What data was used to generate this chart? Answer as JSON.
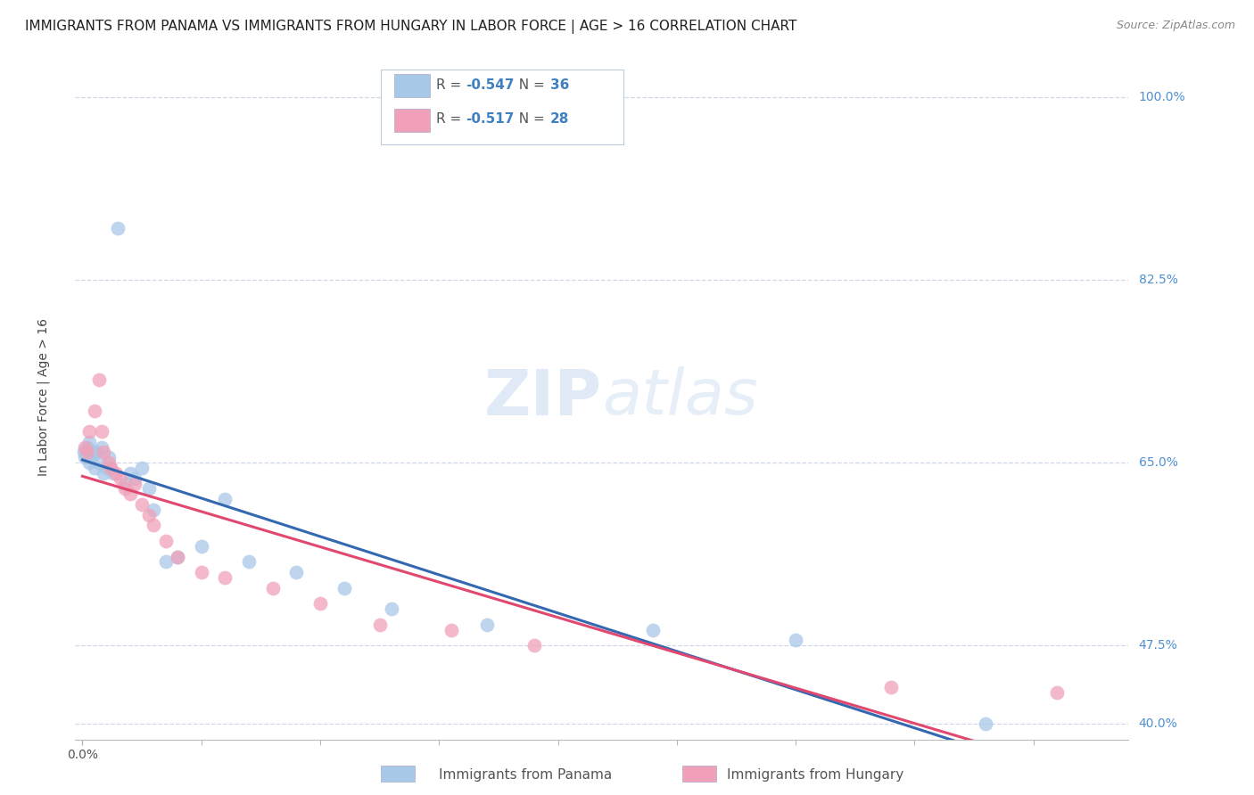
{
  "title": "IMMIGRANTS FROM PANAMA VS IMMIGRANTS FROM HUNGARY IN LABOR FORCE | AGE > 16 CORRELATION CHART",
  "source": "Source: ZipAtlas.com",
  "ylabel": "In Labor Force | Age > 16",
  "right_ytick_labels": [
    "100.0%",
    "82.5%",
    "65.0%",
    "47.5%",
    "40.0%"
  ],
  "right_ytick_values": [
    1.0,
    0.825,
    0.65,
    0.475,
    0.4
  ],
  "xmin": -0.003,
  "xmax": 0.44,
  "ymin": 0.385,
  "ymax": 1.04,
  "panama_color": "#a8c8e8",
  "hungary_color": "#f0a0b8",
  "panama_line_color": "#3468b0",
  "hungary_line_color": "#e04870",
  "grid_color": "#d0d8e8",
  "background_color": "#ffffff",
  "title_fontsize": 11,
  "label_fontsize": 10,
  "tick_fontsize": 10,
  "right_tick_color": "#5090d0",
  "legend_entries": [
    {
      "label": "R =  -0.547   N = 36",
      "color": "#a8c8e8"
    },
    {
      "label": "R =  -0.517   N = 28",
      "color": "#f0a0b8"
    }
  ],
  "panama_x": [
    0.0005,
    0.001,
    0.0015,
    0.002,
    0.003,
    0.003,
    0.004,
    0.005,
    0.005,
    0.006,
    0.007,
    0.008,
    0.009,
    0.01,
    0.011,
    0.012,
    0.013,
    0.015,
    0.018,
    0.02,
    0.022,
    0.025,
    0.028,
    0.03,
    0.035,
    0.04,
    0.05,
    0.06,
    0.07,
    0.09,
    0.11,
    0.13,
    0.17,
    0.24,
    0.3,
    0.38
  ],
  "panama_y": [
    0.66,
    0.655,
    0.66,
    0.665,
    0.67,
    0.65,
    0.655,
    0.66,
    0.645,
    0.66,
    0.65,
    0.665,
    0.64,
    0.645,
    0.655,
    0.645,
    0.64,
    0.875,
    0.63,
    0.64,
    0.635,
    0.645,
    0.625,
    0.605,
    0.555,
    0.56,
    0.57,
    0.615,
    0.555,
    0.545,
    0.53,
    0.51,
    0.495,
    0.49,
    0.48,
    0.4
  ],
  "hungary_x": [
    0.001,
    0.002,
    0.003,
    0.005,
    0.007,
    0.008,
    0.009,
    0.011,
    0.012,
    0.014,
    0.016,
    0.018,
    0.02,
    0.022,
    0.025,
    0.028,
    0.03,
    0.035,
    0.04,
    0.05,
    0.06,
    0.08,
    0.1,
    0.125,
    0.155,
    0.19,
    0.34,
    0.41
  ],
  "hungary_y": [
    0.665,
    0.66,
    0.68,
    0.7,
    0.73,
    0.68,
    0.66,
    0.65,
    0.645,
    0.64,
    0.635,
    0.625,
    0.62,
    0.63,
    0.61,
    0.6,
    0.59,
    0.575,
    0.56,
    0.545,
    0.54,
    0.53,
    0.515,
    0.495,
    0.49,
    0.475,
    0.435,
    0.43
  ]
}
